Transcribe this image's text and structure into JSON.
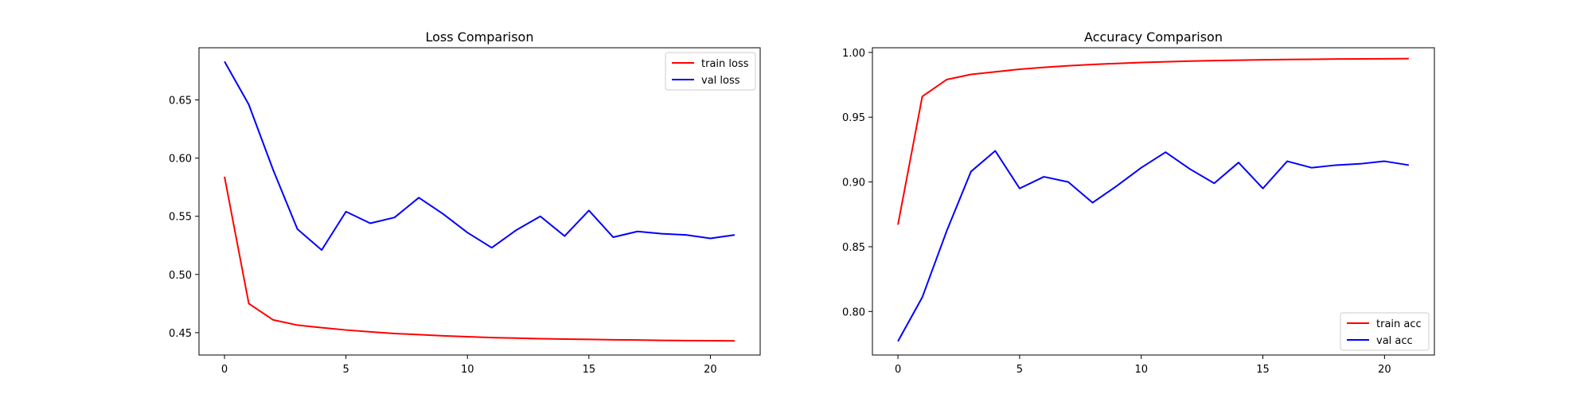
{
  "chart_data": [
    {
      "type": "line",
      "title": "Loss Comparison",
      "xlabel": "",
      "ylabel": "",
      "xlim": [
        -1.05,
        22.05
      ],
      "ylim": [
        0.4308,
        0.6948
      ],
      "xticks": [
        0,
        5,
        10,
        15,
        20
      ],
      "yticks": [
        0.45,
        0.5,
        0.55,
        0.6,
        0.65
      ],
      "ytick_labels": [
        "0.45",
        "0.50",
        "0.55",
        "0.60",
        "0.65"
      ],
      "grid": false,
      "legend_position": "upper right",
      "x": [
        0,
        1,
        2,
        3,
        4,
        5,
        6,
        7,
        8,
        9,
        10,
        11,
        12,
        13,
        14,
        15,
        16,
        17,
        18,
        19,
        20,
        21
      ],
      "series": [
        {
          "name": "train loss",
          "color": "#ff0000",
          "values": [
            0.584,
            0.475,
            0.461,
            0.4565,
            0.4543,
            0.4523,
            0.4507,
            0.4493,
            0.4483,
            0.4473,
            0.4465,
            0.4458,
            0.4453,
            0.4448,
            0.4445,
            0.4442,
            0.4439,
            0.4437,
            0.4434,
            0.4432,
            0.4431,
            0.4429
          ]
        },
        {
          "name": "val loss",
          "color": "#0000ff",
          "values": [
            0.683,
            0.646,
            0.59,
            0.539,
            0.521,
            0.554,
            0.544,
            0.549,
            0.566,
            0.552,
            0.536,
            0.523,
            0.538,
            0.55,
            0.533,
            0.555,
            0.532,
            0.537,
            0.535,
            0.534,
            0.531,
            0.534
          ]
        }
      ]
    },
    {
      "type": "line",
      "title": "Accuracy Comparison",
      "xlabel": "",
      "ylabel": "",
      "xlim": [
        -1.05,
        22.05
      ],
      "ylim": [
        0.7664,
        1.0036
      ],
      "xticks": [
        0,
        5,
        10,
        15,
        20
      ],
      "yticks": [
        0.8,
        0.85,
        0.9,
        0.95,
        1.0
      ],
      "ytick_labels": [
        "0.80",
        "0.85",
        "0.90",
        "0.95",
        "1.00"
      ],
      "grid": false,
      "legend_position": "lower right",
      "x": [
        0,
        1,
        2,
        3,
        4,
        5,
        6,
        7,
        8,
        9,
        10,
        11,
        12,
        13,
        14,
        15,
        16,
        17,
        18,
        19,
        20,
        21
      ],
      "series": [
        {
          "name": "train acc",
          "color": "#ff0000",
          "values": [
            0.867,
            0.966,
            0.979,
            0.983,
            0.985,
            0.987,
            0.9885,
            0.9897,
            0.9907,
            0.9915,
            0.9922,
            0.9928,
            0.9933,
            0.9937,
            0.994,
            0.9943,
            0.9945,
            0.9947,
            0.9949,
            0.995,
            0.9951,
            0.9952
          ]
        },
        {
          "name": "val acc",
          "color": "#0000ff",
          "values": [
            0.777,
            0.811,
            0.862,
            0.908,
            0.924,
            0.895,
            0.904,
            0.9,
            0.884,
            0.897,
            0.911,
            0.923,
            0.91,
            0.899,
            0.915,
            0.895,
            0.916,
            0.911,
            0.913,
            0.914,
            0.916,
            0.913
          ]
        }
      ]
    }
  ]
}
